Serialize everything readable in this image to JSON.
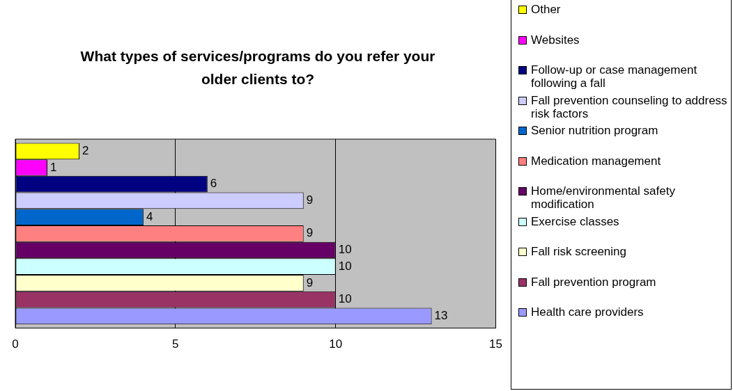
{
  "chart_data": {
    "type": "bar",
    "orientation": "horizontal",
    "title": "What types of services/programs do you refer your older clients to?",
    "categories": [
      null
    ],
    "series": [
      {
        "name": "Other",
        "color": "#ffff00",
        "values": [
          2
        ]
      },
      {
        "name": "Websites",
        "color": "#ff00ff",
        "values": [
          1
        ]
      },
      {
        "name": "Follow-up or case management following a fall",
        "color": "#000080",
        "values": [
          6
        ]
      },
      {
        "name": "Fall prevention counseling to address risk factors",
        "color": "#ccccff",
        "values": [
          9
        ]
      },
      {
        "name": "Senior nutrition program",
        "color": "#0066cc",
        "values": [
          4
        ]
      },
      {
        "name": "Medication management",
        "color": "#ff8080",
        "values": [
          9
        ]
      },
      {
        "name": "Home/environmental safety modification",
        "color": "#660066",
        "values": [
          10
        ]
      },
      {
        "name": "Exercise classes",
        "color": "#ccffff",
        "values": [
          10
        ]
      },
      {
        "name": "Fall risk screening",
        "color": "#ffffcc",
        "values": [
          9
        ]
      },
      {
        "name": "Fall prevention program",
        "color": "#993366",
        "values": [
          10
        ]
      },
      {
        "name": "Health care providers",
        "color": "#9999ff",
        "values": [
          13
        ]
      }
    ],
    "xlim": [
      0,
      15
    ],
    "xticks": [
      0,
      5,
      10,
      15
    ],
    "grid": "x",
    "legend": "right",
    "data_labels": true
  }
}
